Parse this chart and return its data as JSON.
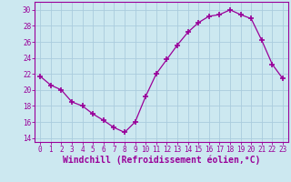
{
  "x": [
    0,
    1,
    2,
    3,
    4,
    5,
    6,
    7,
    8,
    9,
    10,
    11,
    12,
    13,
    14,
    15,
    16,
    17,
    18,
    19,
    20,
    21,
    22,
    23
  ],
  "y": [
    21.7,
    20.6,
    20.0,
    18.5,
    18.0,
    17.0,
    16.2,
    15.3,
    14.7,
    16.0,
    19.2,
    22.0,
    23.8,
    25.6,
    27.2,
    28.4,
    29.2,
    29.4,
    30.0,
    29.4,
    28.9,
    26.2,
    23.2,
    21.4
  ],
  "line_color": "#990099",
  "marker": "+",
  "marker_size": 5,
  "marker_lw": 1.2,
  "bg_color": "#cce8f0",
  "grid_color": "#aaccdd",
  "xlabel": "Windchill (Refroidissement éolien,°C)",
  "ylabel_ticks": [
    14,
    16,
    18,
    20,
    22,
    24,
    26,
    28,
    30
  ],
  "xlim": [
    -0.5,
    23.5
  ],
  "ylim": [
    13.5,
    31.0
  ],
  "xtick_labels": [
    "0",
    "1",
    "2",
    "3",
    "4",
    "5",
    "6",
    "7",
    "8",
    "9",
    "10",
    "11",
    "12",
    "13",
    "14",
    "15",
    "16",
    "17",
    "18",
    "19",
    "20",
    "21",
    "22",
    "23"
  ],
  "font_color": "#990099",
  "axis_color": "#990099",
  "tick_fontsize": 5.5,
  "label_fontsize": 7.0
}
